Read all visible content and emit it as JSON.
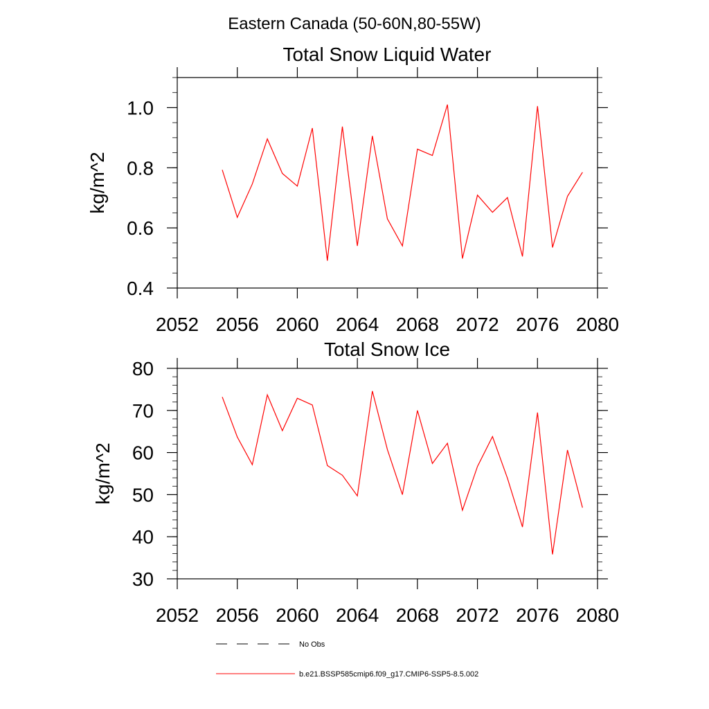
{
  "figure": {
    "suptitle": "Eastern Canada (50-60N,80-55W)"
  },
  "chart_data": [
    {
      "type": "line",
      "title": "Total Snow Liquid Water",
      "xlabel": "",
      "ylabel": "kg/m^2",
      "xlim": [
        2052,
        2080
      ],
      "ylim": [
        0.4,
        1.1
      ],
      "xticks": [
        "2052",
        "2056",
        "2060",
        "2064",
        "2068",
        "2072",
        "2076",
        "2080"
      ],
      "yticks": [
        "0.4",
        "0.6",
        "0.8",
        "1.0"
      ],
      "grid": false,
      "x": [
        2055,
        2056,
        2057,
        2058,
        2059,
        2060,
        2061,
        2062,
        2063,
        2064,
        2065,
        2066,
        2067,
        2068,
        2069,
        2070,
        2071,
        2072,
        2073,
        2074,
        2075,
        2076,
        2077,
        2078,
        2079
      ],
      "series": [
        {
          "color": "#ff0000",
          "values": [
            0.793,
            0.635,
            0.746,
            0.896,
            0.781,
            0.739,
            0.932,
            0.491,
            0.937,
            0.54,
            0.906,
            0.63,
            0.54,
            0.862,
            0.841,
            1.01,
            0.498,
            0.709,
            0.652,
            0.701,
            0.505,
            1.005,
            0.535,
            0.705,
            0.785
          ]
        }
      ]
    },
    {
      "type": "line",
      "title": "Total Snow Ice",
      "xlabel": "",
      "ylabel": "kg/m^2",
      "xlim": [
        2052,
        2080
      ],
      "ylim": [
        30,
        80
      ],
      "xticks": [
        "2052",
        "2056",
        "2060",
        "2064",
        "2068",
        "2072",
        "2076",
        "2080"
      ],
      "yticks": [
        "30",
        "40",
        "50",
        "60",
        "70",
        "80"
      ],
      "grid": false,
      "x": [
        2055,
        2056,
        2057,
        2058,
        2059,
        2060,
        2061,
        2062,
        2063,
        2064,
        2065,
        2066,
        2067,
        2068,
        2069,
        2070,
        2071,
        2072,
        2073,
        2074,
        2075,
        2076,
        2077,
        2078,
        2079
      ],
      "series": [
        {
          "color": "#ff0000",
          "values": [
            73.2,
            63.7,
            57.1,
            73.7,
            65.2,
            72.9,
            71.3,
            56.9,
            54.6,
            49.7,
            74.6,
            60.7,
            50.0,
            70.0,
            57.4,
            62.2,
            46.3,
            56.7,
            63.8,
            53.9,
            42.3,
            69.5,
            35.8,
            60.6,
            46.9
          ]
        }
      ]
    }
  ],
  "legend": {
    "placement": "bottom-center",
    "entries": [
      {
        "label": "No Obs",
        "style": "dashed",
        "color": "#000000"
      },
      {
        "label": "b.e21.BSSP585cmip6.f09_g17.CMIP6-SSP5-8.5.002",
        "style": "solid",
        "color": "#ff0000"
      }
    ]
  }
}
